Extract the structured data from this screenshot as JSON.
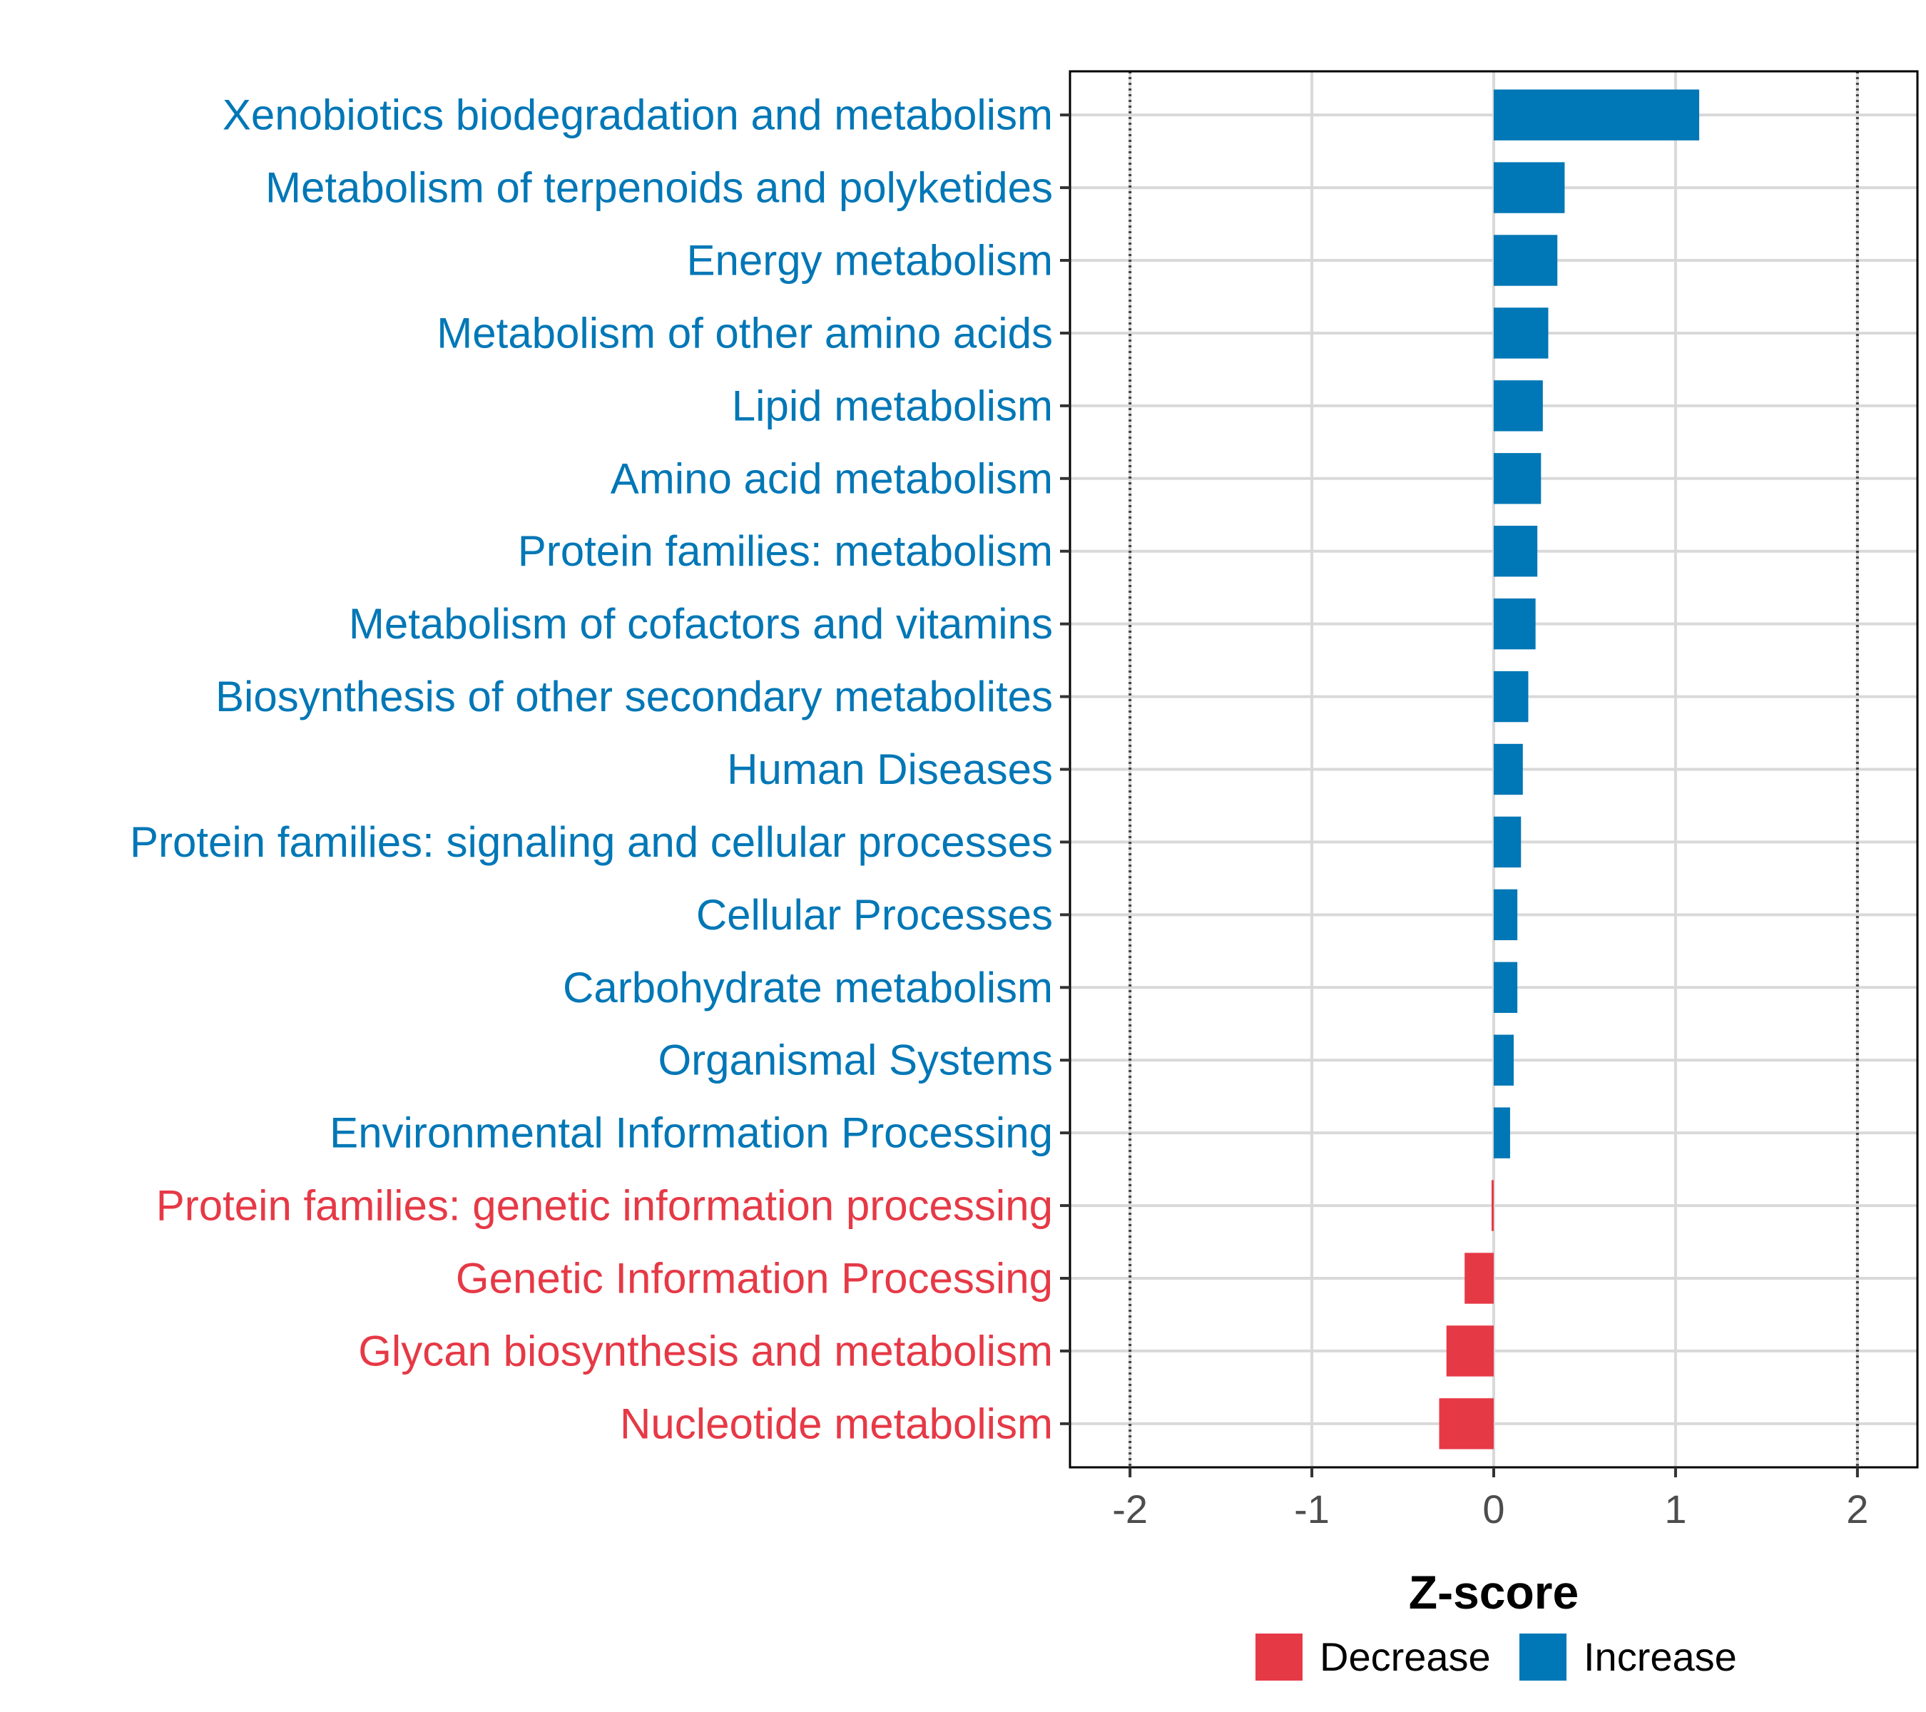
{
  "chart_data": {
    "type": "bar",
    "orientation": "horizontal",
    "title": "",
    "xlabel": "Z-score",
    "ylabel": "",
    "xlim": [
      -2.33,
      2.33
    ],
    "xticks": [
      -2,
      -1,
      0,
      1,
      2
    ],
    "xtick_labels": [
      "-2",
      "-1",
      "0",
      "1",
      "2"
    ],
    "reference_lines": [
      -2,
      2
    ],
    "grid": true,
    "legend_position": "bottom",
    "categories": [
      "Xenobiotics biodegradation and metabolism",
      "Metabolism of terpenoids and polyketides",
      "Energy metabolism",
      "Metabolism of other amino acids",
      "Lipid metabolism",
      "Amino acid metabolism",
      "Protein families: metabolism",
      "Metabolism of cofactors and vitamins",
      "Biosynthesis of other secondary metabolites",
      "Human Diseases",
      "Protein families: signaling and cellular processes",
      "Cellular Processes",
      "Carbohydrate metabolism",
      "Organismal Systems",
      "Environmental Information Processing",
      "Protein families: genetic information processing",
      "Genetic Information Processing",
      "Glycan biosynthesis and metabolism",
      "Nucleotide metabolism"
    ],
    "values": [
      1.13,
      0.39,
      0.35,
      0.3,
      0.27,
      0.26,
      0.24,
      0.23,
      0.19,
      0.16,
      0.15,
      0.13,
      0.13,
      0.11,
      0.09,
      -0.01,
      -0.16,
      -0.26,
      -0.3
    ],
    "groups": [
      "Increase",
      "Increase",
      "Increase",
      "Increase",
      "Increase",
      "Increase",
      "Increase",
      "Increase",
      "Increase",
      "Increase",
      "Increase",
      "Increase",
      "Increase",
      "Increase",
      "Increase",
      "Decrease",
      "Decrease",
      "Decrease",
      "Decrease"
    ],
    "legend": [
      {
        "name": "Decrease",
        "color": "#E63946"
      },
      {
        "name": "Increase",
        "color": "#0077B6"
      }
    ]
  }
}
